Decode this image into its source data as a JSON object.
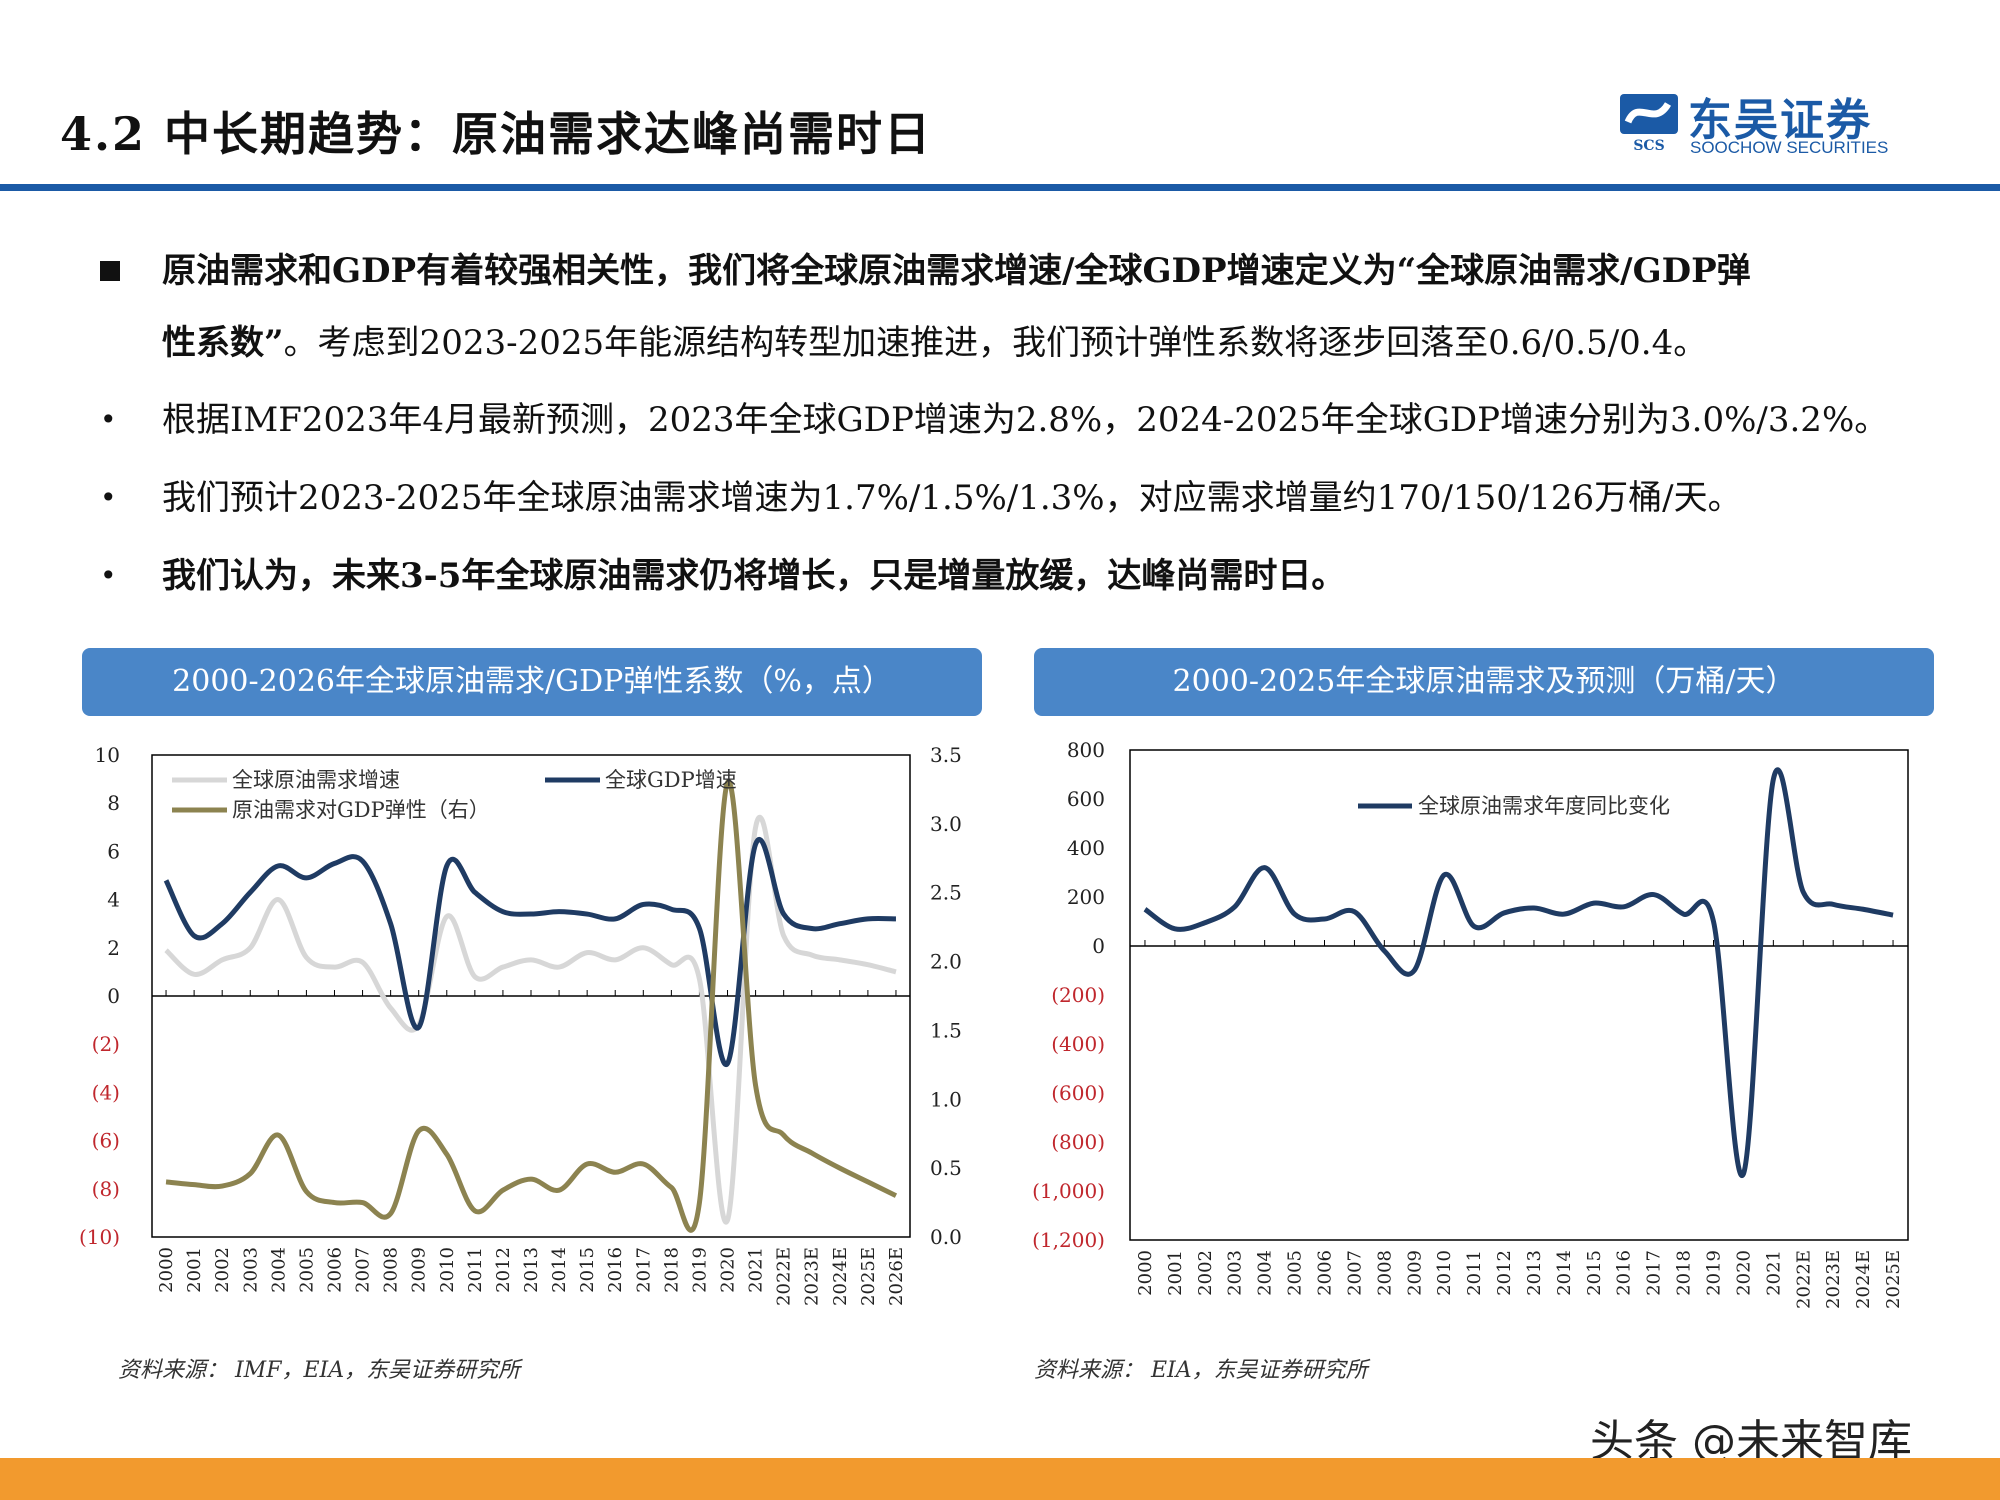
{
  "header": {
    "title": "4.2 中长期趋势：原油需求达峰尚需时日",
    "logo_cn": "东吴证券",
    "logo_en": "SOOCHOW SECURITIES",
    "logo_abbr": "SCS"
  },
  "bullets": [
    {
      "marker": "■",
      "bold": true,
      "lead": "原油需求和GDP有着较强相关性，我们将全球原油需求增速/全球GDP增速定义为“全球原油需求/GDP弹",
      "cont_bold": "性系数”",
      "cont": "。考虑到2023-2025年能源结构转型加速推进，我们预计弹性系数将逐步回落至0.6/0.5/0.4。"
    },
    {
      "marker": "•",
      "bold": false,
      "text": "根据IMF2023年4月最新预测，2023年全球GDP增速为2.8%，2024-2025年全球GDP增速分别为3.0%/3.2%。"
    },
    {
      "marker": "•",
      "bold": false,
      "text": "我们预计2023-2025年全球原油需求增速为1.7%/1.5%/1.3%，对应需求增量约170/150/126万桶/天。"
    },
    {
      "marker": "•",
      "bold": true,
      "text": "我们认为，未来3-5年全球原油需求仍将增长，只是增量放缓，达峰尚需时日。"
    }
  ],
  "left_panel": {
    "header": "2000-2026年全球原油需求/GDP弹性系数（%，点）",
    "source": "资料来源：  IMF，EIA，东吴证券研究所"
  },
  "right_panel": {
    "header": "2000-2025年全球原油需求及预测（万桶/天）",
    "source": "资料来源：  EIA，东吴证券研究所"
  },
  "watermark": "头条 @未来智库",
  "colors": {
    "brand_blue": "#1b5aa6",
    "panel_blue": "#4a86c8",
    "orange": "#f29a2e",
    "navy": "#1f3b63",
    "olive": "#8c8350",
    "lightgray": "#d7d7d7"
  },
  "chart_data": [
    {
      "type": "line",
      "categories": [
        "2000",
        "2001",
        "2002",
        "2003",
        "2004",
        "2005",
        "2006",
        "2007",
        "2008",
        "2009",
        "2010",
        "2011",
        "2012",
        "2013",
        "2014",
        "2015",
        "2016",
        "2017",
        "2018",
        "2019",
        "2020",
        "2021",
        "2022E",
        "2023E",
        "2024E",
        "2025E",
        "2026E"
      ],
      "y_left": {
        "ticks": [
          "10",
          "8",
          "6",
          "4",
          "2",
          "0",
          "(2)",
          "(4)",
          "(6)",
          "(8)",
          "(10)"
        ],
        "lim": [
          -10,
          10
        ]
      },
      "y_right": {
        "ticks": [
          "3.5",
          "3.0",
          "2.5",
          "2.0",
          "1.5",
          "1.0",
          "0.5",
          "0.0"
        ],
        "lim": [
          0,
          3.5
        ]
      },
      "series": [
        {
          "name": "全球原油需求增速",
          "axis": "left",
          "color": "#d7d7d7",
          "values": [
            1.9,
            0.9,
            1.5,
            2.0,
            4.0,
            1.6,
            1.2,
            1.4,
            -0.5,
            -1.2,
            3.3,
            0.8,
            1.2,
            1.5,
            1.2,
            1.8,
            1.5,
            2.0,
            1.3,
            0.7,
            -9.3,
            7.0,
            2.5,
            1.7,
            1.5,
            1.3,
            1.0
          ]
        },
        {
          "name": "全球GDP增速",
          "axis": "left",
          "color": "#1f3b63",
          "values": [
            4.8,
            2.5,
            3.0,
            4.3,
            5.4,
            4.9,
            5.5,
            5.6,
            3.0,
            -1.3,
            5.4,
            4.3,
            3.5,
            3.4,
            3.5,
            3.4,
            3.2,
            3.8,
            3.6,
            2.8,
            -2.8,
            6.3,
            3.4,
            2.8,
            3.0,
            3.2,
            3.2
          ]
        },
        {
          "name": "原油需求对GDP弹性（右）",
          "axis": "right",
          "color": "#8c8350",
          "values": [
            0.4,
            0.38,
            0.37,
            0.46,
            0.74,
            0.33,
            0.25,
            0.25,
            0.17,
            0.77,
            0.6,
            0.19,
            0.34,
            0.42,
            0.34,
            0.53,
            0.47,
            0.53,
            0.36,
            0.25,
            3.3,
            1.1,
            0.74,
            0.61,
            0.5,
            0.4,
            0.3
          ]
        }
      ]
    },
    {
      "type": "line",
      "categories": [
        "2000",
        "2001",
        "2002",
        "2003",
        "2004",
        "2005",
        "2006",
        "2007",
        "2008",
        "2009",
        "2010",
        "2011",
        "2012",
        "2013",
        "2014",
        "2015",
        "2016",
        "2017",
        "2018",
        "2019",
        "2020",
        "2021",
        "2022E",
        "2023E",
        "2024E",
        "2025E"
      ],
      "y": {
        "ticks": [
          "800",
          "600",
          "400",
          "200",
          "0",
          "(200)",
          "(400)",
          "(600)",
          "(800)",
          "(1,000)",
          "(1,200)"
        ],
        "lim": [
          -1200,
          800
        ]
      },
      "series": [
        {
          "name": "全球原油需求年度同比变化",
          "color": "#1f3b63",
          "values": [
            150,
            70,
            95,
            160,
            320,
            130,
            110,
            140,
            -20,
            -100,
            290,
            80,
            135,
            155,
            130,
            175,
            160,
            210,
            130,
            100,
            -930,
            680,
            220,
            170,
            150,
            126
          ]
        }
      ]
    }
  ]
}
